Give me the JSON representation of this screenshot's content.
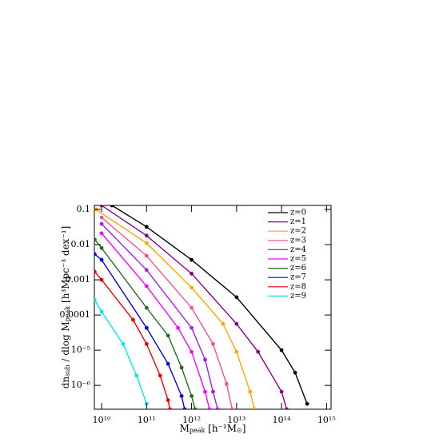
{
  "chart_data": {
    "type": "line",
    "xlabel": [
      "M",
      "peak",
      " [h⁻¹M",
      "⊙",
      "]"
    ],
    "ylabel": [
      "dn",
      "sub",
      " / dlog M",
      "peak",
      "  [h³Mpc⁻³ dex⁻¹]"
    ],
    "xscale": "log",
    "yscale": "log",
    "xlim": [
      6900000000.0,
      1260000000000000.0
    ],
    "ylim": [
      2.1e-07,
      0.13
    ],
    "xticks": [
      {
        "value": 10000000000.0,
        "label": "10¹⁰"
      },
      {
        "value": 100000000000.0,
        "label": "10¹¹"
      },
      {
        "value": 1000000000000.0,
        "label": "10¹²"
      },
      {
        "value": 10000000000000.0,
        "label": "10¹³"
      },
      {
        "value": 100000000000000.0,
        "label": "10¹⁴"
      },
      {
        "value": 1000000000000000.0,
        "label": "10¹⁵"
      }
    ],
    "yticks": [
      0.1,
      0.01,
      0.001,
      0.0001,
      {
        "value": 1e-05,
        "label": "10⁻⁵"
      },
      {
        "value": 1e-06,
        "label": "10⁻⁶"
      }
    ],
    "legend": "upper right",
    "series": [
      {
        "name": "z=0",
        "color": "#000000",
        "x": [
          17000000000.0,
          100000000000.0,
          1000000000000.0,
          10000000000000.0,
          100000000000000.0,
          200000000000000.0,
          370000000000000.0
        ],
        "values": [
          0.13,
          0.032,
          0.0037,
          0.00032,
          1e-05,
          2.3e-06,
          3e-07
        ]
      },
      {
        "name": "z=1",
        "color": "#8b008b",
        "x": [
          10000000000.0,
          100000000000.0,
          1000000000000.0,
          10000000000000.0,
          30000000000000.0,
          100000000000000.0,
          130000000000000.0
        ],
        "values": [
          0.13,
          0.018,
          0.0015,
          5.6e-05,
          9e-06,
          6.6e-07,
          2.1e-07
        ]
      },
      {
        "name": "z=2",
        "color": "#ffa500",
        "x": [
          7500000000.0,
          100000000000.0,
          1000000000000.0,
          5000000000000.0,
          10000000000000.0,
          20000000000000.0,
          25000000000000.0
        ],
        "values": [
          0.1,
          0.011,
          0.0006,
          5.6e-05,
          9e-06,
          6.6e-07,
          2.1e-07
        ]
      },
      {
        "name": "z=3",
        "color": "#ff4f8b",
        "x": [
          10000000000.0,
          100000000000.0,
          1000000000000.0,
          3000000000000.0,
          6000000000000.0,
          8000000000000.0
        ],
        "values": [
          0.059,
          0.0048,
          0.00016,
          1.5e-05,
          1.1e-06,
          2.1e-07
        ]
      },
      {
        "name": "z=4",
        "color": "#a020f0",
        "x": [
          10000000000.0,
          100000000000.0,
          1000000000000.0,
          2000000000000.0,
          3000000000000.0,
          3800000000000.0
        ],
        "values": [
          0.039,
          0.0019,
          4.3e-05,
          5.4e-06,
          6.6e-07,
          2.1e-07
        ]
      },
      {
        "name": "z=5",
        "color": "#ff00ff",
        "x": [
          10000000000.0,
          100000000000.0,
          500000000000.0,
          1000000000000.0,
          2000000000000.0,
          2500000000000.0
        ],
        "values": [
          0.021,
          0.00066,
          4.3e-05,
          9e-06,
          6.6e-07,
          2.1e-07
        ]
      },
      {
        "name": "z=6",
        "color": "#1f6e1f",
        "x": [
          7000000000.0,
          10000000000.0,
          100000000000.0,
          300000000000.0,
          600000000000.0,
          1000000000000.0,
          1200000000000.0
        ],
        "values": [
          0.014,
          0.008,
          0.00016,
          2.6e-05,
          3.2e-06,
          5e-07,
          2.1e-07
        ]
      },
      {
        "name": "z=7",
        "color": "#0000ee",
        "x": [
          7000000000.0,
          10000000000.0,
          100000000000.0,
          300000000000.0,
          600000000000.0,
          700000000000.0
        ],
        "values": [
          0.0054,
          0.0037,
          4.3e-05,
          4.1e-06,
          5e-07,
          2.1e-07
        ]
      },
      {
        "name": "z=8",
        "color": "#ee0000",
        "x": [
          7000000000.0,
          10000000000.0,
          50000000000.0,
          100000000000.0,
          200000000000.0,
          300000000000.0,
          330000000000.0
        ],
        "values": [
          0.0017,
          0.001,
          7.3e-05,
          1.5e-05,
          1.9e-06,
          3.8e-07,
          2.1e-07
        ]
      },
      {
        "name": "z=9",
        "color": "#00e5ee",
        "x": [
          7000000000.0,
          10000000000.0,
          30000000000.0,
          60000000000.0,
          100000000000.0
        ],
        "values": [
          0.00027,
          0.000124,
          1.5e-05,
          1.9e-06,
          3e-07
        ]
      }
    ]
  }
}
